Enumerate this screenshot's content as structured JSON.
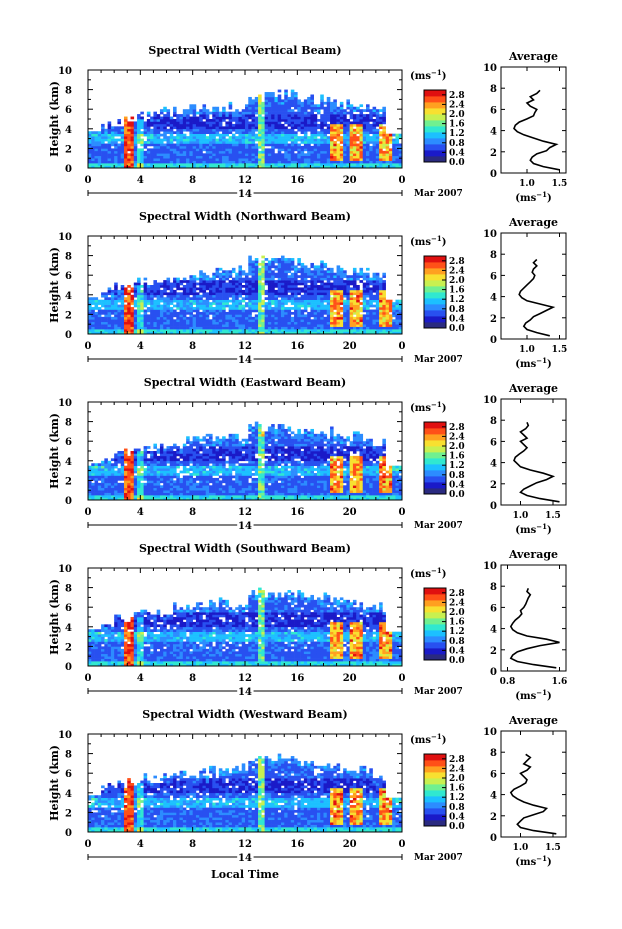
{
  "figure": {
    "month_label": "Mar 2007",
    "day_label": "14",
    "xlabel": "Local Time",
    "avg_title": "Average",
    "unit_label": "(ms⁻¹)",
    "unit_base": "(ms",
    "unit_sup": "−1",
    "unit_close": ")"
  },
  "chart_data": [
    {
      "type": "heatmap",
      "title": "Spectral Width (Vertical Beam)",
      "ylabel": "Height (km)",
      "x_ticks": [
        "0",
        "4",
        "8",
        "12",
        "16",
        "20",
        "0"
      ],
      "xlim": [
        0,
        24
      ],
      "y_ticks": [
        "0",
        "2",
        "4",
        "6",
        "8",
        "10"
      ],
      "ylim": [
        0,
        10
      ],
      "colorbar": {
        "ticks": [
          "0.0",
          "0.4",
          "0.8",
          "1.2",
          "1.6",
          "2.0",
          "2.4",
          "2.8"
        ],
        "range": [
          0,
          3.0
        ]
      },
      "profile": {
        "type": "line",
        "xlim": [
          0.6,
          1.6
        ],
        "x_ticks": [
          "1.0",
          "1.5"
        ],
        "height": [
          0.3,
          0.6,
          0.9,
          1.2,
          1.5,
          1.8,
          2.1,
          2.4,
          2.7,
          3.0,
          3.3,
          3.6,
          3.9,
          4.2,
          4.5,
          4.8,
          5.1,
          5.4,
          5.7,
          6.0,
          6.3,
          6.6,
          6.9,
          7.2,
          7.5,
          7.8
        ],
        "width": [
          1.5,
          1.25,
          1.1,
          1.05,
          1.08,
          1.15,
          1.3,
          1.35,
          1.45,
          1.25,
          1.1,
          0.95,
          0.85,
          0.8,
          0.82,
          0.88,
          1.0,
          1.1,
          1.12,
          1.15,
          1.05,
          1.0,
          1.1,
          1.05,
          1.15,
          1.2
        ]
      }
    },
    {
      "type": "heatmap",
      "title": "Spectral Width (Northward Beam)",
      "ylabel": "Height (km)",
      "x_ticks": [
        "0",
        "4",
        "8",
        "12",
        "16",
        "20",
        "0"
      ],
      "xlim": [
        0,
        24
      ],
      "y_ticks": [
        "0",
        "2",
        "4",
        "6",
        "8",
        "10"
      ],
      "ylim": [
        0,
        10
      ],
      "colorbar": {
        "ticks": [
          "0.0",
          "0.4",
          "0.8",
          "1.2",
          "1.6",
          "2.0",
          "2.4",
          "2.8"
        ],
        "range": [
          0,
          3.0
        ]
      },
      "profile": {
        "type": "line",
        "xlim": [
          0.6,
          1.6
        ],
        "x_ticks": [
          "1.0",
          "1.5"
        ],
        "height": [
          0.3,
          0.6,
          0.9,
          1.2,
          1.5,
          1.8,
          2.1,
          2.4,
          2.7,
          3.0,
          3.3,
          3.6,
          3.9,
          4.2,
          4.5,
          4.8,
          5.1,
          5.4,
          5.7,
          6.0,
          6.3,
          6.6,
          6.9,
          7.2,
          7.5
        ],
        "width": [
          1.35,
          1.15,
          1.0,
          0.95,
          0.98,
          1.05,
          1.1,
          1.2,
          1.3,
          1.4,
          1.2,
          1.0,
          0.92,
          0.88,
          0.9,
          0.95,
          1.0,
          1.05,
          1.1,
          1.12,
          1.08,
          1.1,
          1.15,
          1.1,
          1.15
        ]
      }
    },
    {
      "type": "heatmap",
      "title": "Spectral Width (Eastward Beam)",
      "ylabel": "Height (km)",
      "x_ticks": [
        "0",
        "4",
        "8",
        "12",
        "16",
        "20",
        "0"
      ],
      "xlim": [
        0,
        24
      ],
      "y_ticks": [
        "0",
        "2",
        "4",
        "6",
        "8",
        "10"
      ],
      "ylim": [
        0,
        10
      ],
      "colorbar": {
        "ticks": [
          "0.0",
          "0.4",
          "0.8",
          "1.2",
          "1.6",
          "2.0",
          "2.4",
          "2.8"
        ],
        "range": [
          0,
          3.0
        ]
      },
      "profile": {
        "type": "line",
        "xlim": [
          0.7,
          1.7
        ],
        "x_ticks": [
          "1.0",
          "1.5"
        ],
        "height": [
          0.3,
          0.6,
          0.9,
          1.2,
          1.5,
          1.8,
          2.1,
          2.4,
          2.7,
          3.0,
          3.3,
          3.6,
          3.9,
          4.2,
          4.5,
          4.8,
          5.1,
          5.4,
          5.7,
          6.0,
          6.3,
          6.6,
          6.9,
          7.2,
          7.5,
          7.8
        ],
        "width": [
          1.6,
          1.3,
          1.1,
          1.0,
          1.05,
          1.15,
          1.25,
          1.4,
          1.5,
          1.35,
          1.15,
          1.0,
          0.95,
          0.9,
          0.92,
          0.98,
          1.05,
          1.1,
          1.05,
          1.0,
          1.1,
          1.05,
          1.0,
          1.08,
          1.12,
          1.1
        ]
      }
    },
    {
      "type": "heatmap",
      "title": "Spectral Width (Southward Beam)",
      "ylabel": "Height (km)",
      "x_ticks": [
        "0",
        "4",
        "8",
        "12",
        "16",
        "20",
        "0"
      ],
      "xlim": [
        0,
        24
      ],
      "y_ticks": [
        "0",
        "2",
        "4",
        "6",
        "8",
        "10"
      ],
      "ylim": [
        0,
        10
      ],
      "colorbar": {
        "ticks": [
          "0.0",
          "0.4",
          "0.8",
          "1.2",
          "1.6",
          "2.0",
          "2.4",
          "2.8"
        ],
        "range": [
          0,
          3.0
        ]
      },
      "profile": {
        "type": "line",
        "xlim": [
          0.7,
          1.7
        ],
        "x_ticks": [
          "0.8",
          "1.6"
        ],
        "height": [
          0.3,
          0.6,
          0.9,
          1.2,
          1.5,
          1.8,
          2.1,
          2.4,
          2.7,
          3.0,
          3.3,
          3.6,
          3.9,
          4.2,
          4.5,
          4.8,
          5.1,
          5.4,
          5.7,
          6.0,
          6.3,
          6.6,
          6.9,
          7.2,
          7.5,
          7.8
        ],
        "width": [
          1.55,
          1.2,
          0.95,
          0.85,
          0.88,
          0.95,
          1.1,
          1.3,
          1.6,
          1.4,
          1.1,
          0.95,
          0.88,
          0.85,
          0.88,
          0.92,
          0.98,
          1.02,
          1.0,
          1.05,
          1.08,
          1.1,
          1.12,
          1.15,
          1.1,
          1.12
        ]
      }
    },
    {
      "type": "heatmap",
      "title": "Spectral Width (Westward Beam)",
      "ylabel": "Height (km)",
      "x_ticks": [
        "0",
        "4",
        "8",
        "12",
        "16",
        "20",
        "0"
      ],
      "xlim": [
        0,
        24
      ],
      "y_ticks": [
        "0",
        "2",
        "4",
        "6",
        "8",
        "10"
      ],
      "ylim": [
        0,
        10
      ],
      "colorbar": {
        "ticks": [
          "0.0",
          "0.4",
          "0.8",
          "1.2",
          "1.6",
          "2.0",
          "2.4",
          "2.8"
        ],
        "range": [
          0,
          3.0
        ]
      },
      "profile": {
        "type": "line",
        "xlim": [
          0.7,
          1.7
        ],
        "x_ticks": [
          "1.0",
          "1.5"
        ],
        "height": [
          0.3,
          0.6,
          0.9,
          1.2,
          1.5,
          1.8,
          2.1,
          2.4,
          2.7,
          3.0,
          3.3,
          3.6,
          3.9,
          4.2,
          4.5,
          4.8,
          5.1,
          5.4,
          5.7,
          6.0,
          6.3,
          6.6,
          6.9,
          7.2,
          7.5,
          7.8
        ],
        "width": [
          1.55,
          1.2,
          1.0,
          0.95,
          1.0,
          1.05,
          1.2,
          1.35,
          1.4,
          1.2,
          1.05,
          0.95,
          0.88,
          0.85,
          0.9,
          1.0,
          1.08,
          1.1,
          1.05,
          1.0,
          1.1,
          1.15,
          1.05,
          1.1,
          1.15,
          1.08
        ]
      }
    }
  ],
  "colormap": [
    "#2a2a80",
    "#1a1ac8",
    "#2850f0",
    "#2c8cff",
    "#1cc0ff",
    "#30e8d0",
    "#70f090",
    "#c8f050",
    "#f8e030",
    "#ffa020",
    "#ff5018",
    "#e01010"
  ]
}
